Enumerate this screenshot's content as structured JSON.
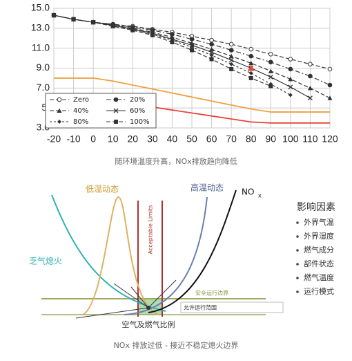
{
  "chart_data": {
    "type": "line",
    "x": [
      -20,
      -10,
      0,
      10,
      20,
      30,
      40,
      50,
      60,
      70,
      80,
      90,
      100,
      110,
      120
    ],
    "xlim": [
      -20,
      120
    ],
    "xticks": [
      -20,
      -10,
      0,
      10,
      20,
      30,
      40,
      50,
      60,
      70,
      80,
      90,
      100,
      110,
      120
    ],
    "ylim": [
      3,
      15
    ],
    "yticks": [
      {
        "value": 3,
        "label": "3.0"
      },
      {
        "value": 5,
        "label": "5."
      },
      {
        "value": 7,
        "label": "7.0"
      },
      {
        "value": 9,
        "label": "9.0"
      },
      {
        "value": 11,
        "label": "11.0"
      },
      {
        "value": 13,
        "label": "13.0"
      },
      {
        "value": 15,
        "label": "15.0"
      }
    ],
    "grid": true,
    "legend": "lower-left",
    "series": [
      {
        "name": "Zero",
        "color": "#333333",
        "marker": "circle-open",
        "dash": "dash",
        "values": [
          14.3,
          13.9,
          13.6,
          13.4,
          13.2,
          12.9,
          12.6,
          12.2,
          11.8,
          11.4,
          10.9,
          10.4,
          9.9,
          9.4,
          8.9
        ]
      },
      {
        "name": "20%",
        "color": "#333333",
        "marker": "circle",
        "dash": "dashdot",
        "values": [
          14.3,
          13.9,
          13.6,
          13.4,
          13.1,
          12.8,
          12.4,
          11.9,
          11.4,
          10.8,
          10.2,
          9.6,
          8.9,
          8.2,
          7.3
        ]
      },
      {
        "name": "40%",
        "color": "#333333",
        "marker": "triangle",
        "dash": "dash",
        "values": [
          14.3,
          13.9,
          13.6,
          13.3,
          13.0,
          12.6,
          12.1,
          11.5,
          10.9,
          10.2,
          9.5,
          8.7,
          7.9,
          7.0,
          6.0
        ]
      },
      {
        "name": "60%",
        "color": "#333333",
        "marker": "x",
        "dash": "solid",
        "values": [
          14.3,
          13.9,
          13.6,
          13.3,
          12.9,
          12.5,
          11.9,
          11.3,
          10.6,
          9.8,
          9.0,
          8.1,
          7.1,
          6.0,
          null
        ]
      },
      {
        "name": "80%",
        "color": "#333333",
        "marker": "diamond",
        "dash": "dot",
        "values": [
          14.3,
          13.9,
          13.6,
          13.3,
          12.9,
          12.4,
          11.8,
          11.1,
          10.3,
          9.4,
          8.5,
          7.4,
          6.3,
          null,
          null
        ]
      },
      {
        "name": "100%",
        "color": "#333333",
        "marker": "square",
        "dash": "dash",
        "values": [
          14.3,
          13.9,
          13.6,
          13.2,
          12.8,
          12.3,
          11.6,
          10.8,
          9.9,
          8.9,
          8.0,
          7.2,
          null,
          null,
          null
        ]
      },
      {
        "color": "#f0a040",
        "marker": "none",
        "dash": "solid",
        "values": [
          8.0,
          8.0,
          8.0,
          7.7,
          7.3,
          6.9,
          6.5,
          6.1,
          5.7,
          5.3,
          4.9,
          4.6,
          4.6,
          4.6,
          4.6
        ]
      },
      {
        "color": "#e8423a",
        "marker": "none",
        "dash": "solid",
        "values": [
          6.4,
          6.3,
          6.2,
          5.9,
          5.5,
          5.1,
          4.8,
          4.5,
          4.2,
          3.9,
          3.6,
          3.5,
          3.5,
          3.5,
          3.5
        ]
      }
    ],
    "highlight": {
      "x": 80,
      "y": 9.0,
      "color": "#e8423a"
    }
  },
  "captions": {
    "top": "随环境温度升高，NOx排放趋向降低",
    "bottom": "NOx 排放过低 - 接近不稳定熄火边界"
  },
  "diagram": {
    "low_temp": "低温动态",
    "high_temp": "高温动态",
    "nox": "NO",
    "nox_sub": "x",
    "lean_blowout": "乏气熄火",
    "acceptable": "Acceptable Limits",
    "safe_boundary": "安全运行边界",
    "allowed_range": "允许运行范围",
    "x_label": "空气及燃气比例",
    "factors_title": "影响因素",
    "factors": [
      "外界气温",
      "外界湿度",
      "燃气成分",
      "部件状态",
      "燃气温度",
      "运行模式"
    ]
  }
}
